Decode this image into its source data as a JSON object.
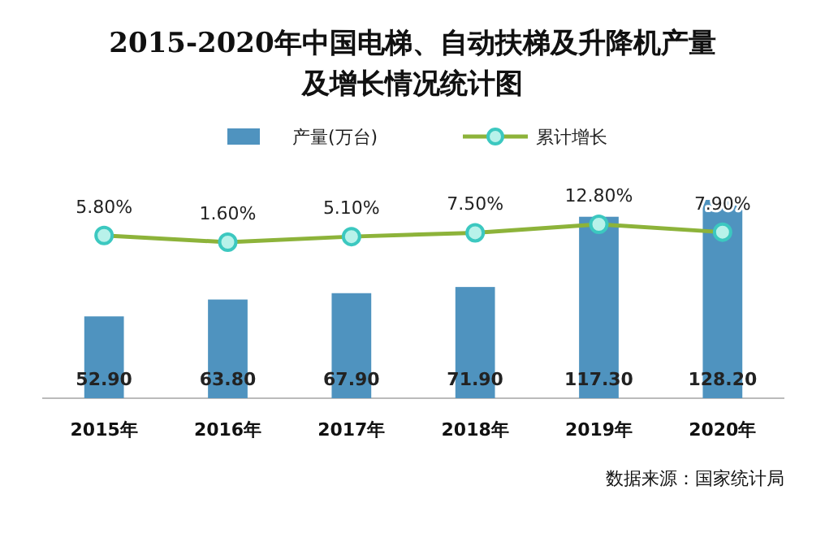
{
  "chart_data": {
    "type": "bar",
    "title": "2015-2020年中国电梯、自动扶梯及升降机产量及增长情况统计图",
    "categories": [
      "2015年",
      "2016年",
      "2017年",
      "2018年",
      "2019年",
      "2020年"
    ],
    "legend": "top",
    "series": [
      {
        "name": "产量(万台)",
        "color": "#4f93bf",
        "values": [
          52.9,
          63.8,
          67.9,
          71.9,
          117.3,
          128.2
        ],
        "value_labels": [
          "52.90",
          "63.80",
          "67.90",
          "71.90",
          "117.30",
          "128.20"
        ]
      },
      {
        "name": "累计增长",
        "type": "line",
        "axis": "y2",
        "color": "#8db33a",
        "marker": "circle",
        "values": [
          5.8,
          1.6,
          5.1,
          7.5,
          12.8,
          7.9
        ],
        "value_labels": [
          "5.80%",
          "1.60%",
          "5.10%",
          "7.50%",
          "12.80%",
          "7.90%"
        ]
      }
    ],
    "annotations": [
      "数据来源：国家统计局"
    ]
  }
}
